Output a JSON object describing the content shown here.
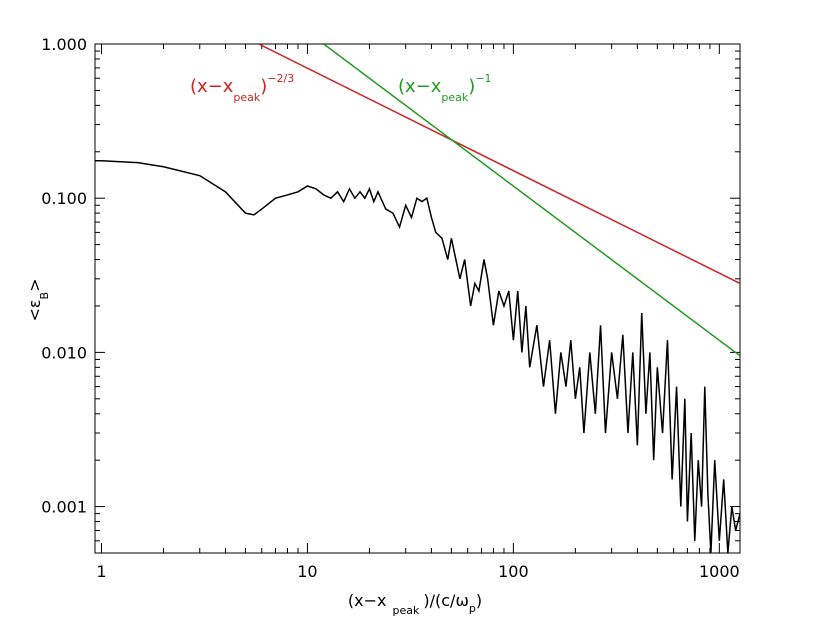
{
  "chart_data": {
    "type": "line",
    "x_label": [
      "(x−x",
      "peak",
      ")/(c/ω",
      "p",
      ")"
    ],
    "y_label": [
      "<ε",
      "B",
      ">"
    ],
    "annotations": [
      {
        "parts": [
          "(x−x",
          "peak",
          ")",
          "−2/3"
        ],
        "color": "#cc2222"
      },
      {
        "parts": [
          "(x−x",
          "peak",
          ")",
          "−1"
        ],
        "color": "#229922"
      }
    ],
    "log_x": true,
    "log_y": true,
    "xlim": [
      0.93,
      1260
    ],
    "ylim": [
      0.0005,
      1.0
    ],
    "xticks": [
      1,
      10,
      100,
      1000
    ],
    "yticks": [
      {
        "value": 0.001,
        "label": "0.001"
      },
      {
        "value": 0.01,
        "label": "0.010"
      },
      {
        "value": 0.1,
        "label": "0.100"
      },
      {
        "value": 1,
        "label": "1.000"
      }
    ],
    "series": [
      {
        "color": "#000000",
        "x": [
          0.93,
          1,
          1.5,
          2,
          3,
          4,
          5,
          5.5,
          6,
          7,
          8,
          9,
          10,
          11,
          12,
          13,
          14,
          15,
          16,
          17,
          18,
          19,
          20,
          21,
          22,
          24,
          26,
          28,
          30,
          32,
          34,
          36,
          38,
          40,
          42,
          45,
          48,
          50,
          55,
          58,
          62,
          65,
          68,
          72,
          75,
          80,
          85,
          90,
          95,
          100,
          105,
          110,
          115,
          120,
          130,
          140,
          150,
          160,
          170,
          180,
          190,
          200,
          210,
          220,
          235,
          250,
          265,
          280,
          300,
          320,
          340,
          360,
          380,
          400,
          420,
          440,
          460,
          480,
          500,
          530,
          560,
          590,
          620,
          650,
          680,
          700,
          730,
          760,
          790,
          820,
          850,
          880,
          910,
          950,
          1000,
          1050,
          1100,
          1150,
          1200,
          1260
        ],
        "values": [
          0.175,
          0.175,
          0.17,
          0.16,
          0.14,
          0.11,
          0.08,
          0.078,
          0.085,
          0.1,
          0.105,
          0.11,
          0.12,
          0.115,
          0.105,
          0.1,
          0.11,
          0.095,
          0.115,
          0.1,
          0.11,
          0.1,
          0.115,
          0.095,
          0.11,
          0.085,
          0.08,
          0.065,
          0.09,
          0.075,
          0.1,
          0.095,
          0.1,
          0.075,
          0.06,
          0.055,
          0.04,
          0.055,
          0.03,
          0.04,
          0.02,
          0.028,
          0.025,
          0.04,
          0.03,
          0.015,
          0.025,
          0.02,
          0.025,
          0.012,
          0.025,
          0.01,
          0.02,
          0.008,
          0.015,
          0.006,
          0.012,
          0.004,
          0.01,
          0.006,
          0.012,
          0.005,
          0.008,
          0.003,
          0.01,
          0.004,
          0.015,
          0.003,
          0.01,
          0.005,
          0.013,
          0.003,
          0.01,
          0.0025,
          0.018,
          0.004,
          0.01,
          0.002,
          0.008,
          0.003,
          0.012,
          0.0015,
          0.006,
          0.001,
          0.005,
          0.0008,
          0.003,
          0.0006,
          0.002,
          0.001,
          0.006,
          0.0012,
          0.0005,
          0.002,
          0.0006,
          0.0015,
          0.0005,
          0.001,
          0.0007,
          0.0009
        ]
      },
      {
        "color": "#cc2222",
        "x": [
          5.8,
          1260
        ],
        "values": [
          1.0,
          0.028
        ]
      },
      {
        "color": "#229922",
        "x": [
          12,
          1260
        ],
        "values": [
          1.0,
          0.0095
        ]
      }
    ]
  }
}
